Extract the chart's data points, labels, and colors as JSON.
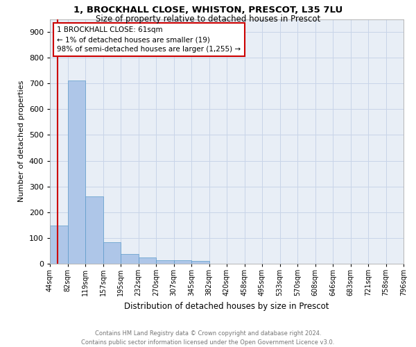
{
  "title1": "1, BROCKHALL CLOSE, WHISTON, PRESCOT, L35 7LU",
  "title2": "Size of property relative to detached houses in Prescot",
  "xlabel": "Distribution of detached houses by size in Prescot",
  "ylabel": "Number of detached properties",
  "footnote1": "Contains HM Land Registry data © Crown copyright and database right 2024.",
  "footnote2": "Contains public sector information licensed under the Open Government Licence v3.0.",
  "annotation_line1": "1 BROCKHALL CLOSE: 61sqm",
  "annotation_line2": "← 1% of detached houses are smaller (19)",
  "annotation_line3": "98% of semi-detached houses are larger (1,255) →",
  "bar_values": [
    148,
    712,
    262,
    83,
    38,
    24,
    14,
    14,
    12,
    0,
    0,
    0,
    0,
    0,
    0,
    0,
    0,
    0,
    0,
    0
  ],
  "bar_labels": [
    "44sqm",
    "82sqm",
    "119sqm",
    "157sqm",
    "195sqm",
    "232sqm",
    "270sqm",
    "307sqm",
    "345sqm",
    "382sqm",
    "420sqm",
    "458sqm",
    "495sqm",
    "533sqm",
    "570sqm",
    "608sqm",
    "646sqm",
    "683sqm",
    "721sqm",
    "758sqm",
    "796sqm"
  ],
  "bar_color": "#aec6e8",
  "bar_edge_color": "#5b9ac9",
  "vline_color": "#cc0000",
  "annotation_box_color": "#cc0000",
  "grid_color": "#c8d4e8",
  "background_color": "#e8eef6",
  "ylim": [
    0,
    950
  ],
  "yticks": [
    0,
    100,
    200,
    300,
    400,
    500,
    600,
    700,
    800,
    900
  ]
}
